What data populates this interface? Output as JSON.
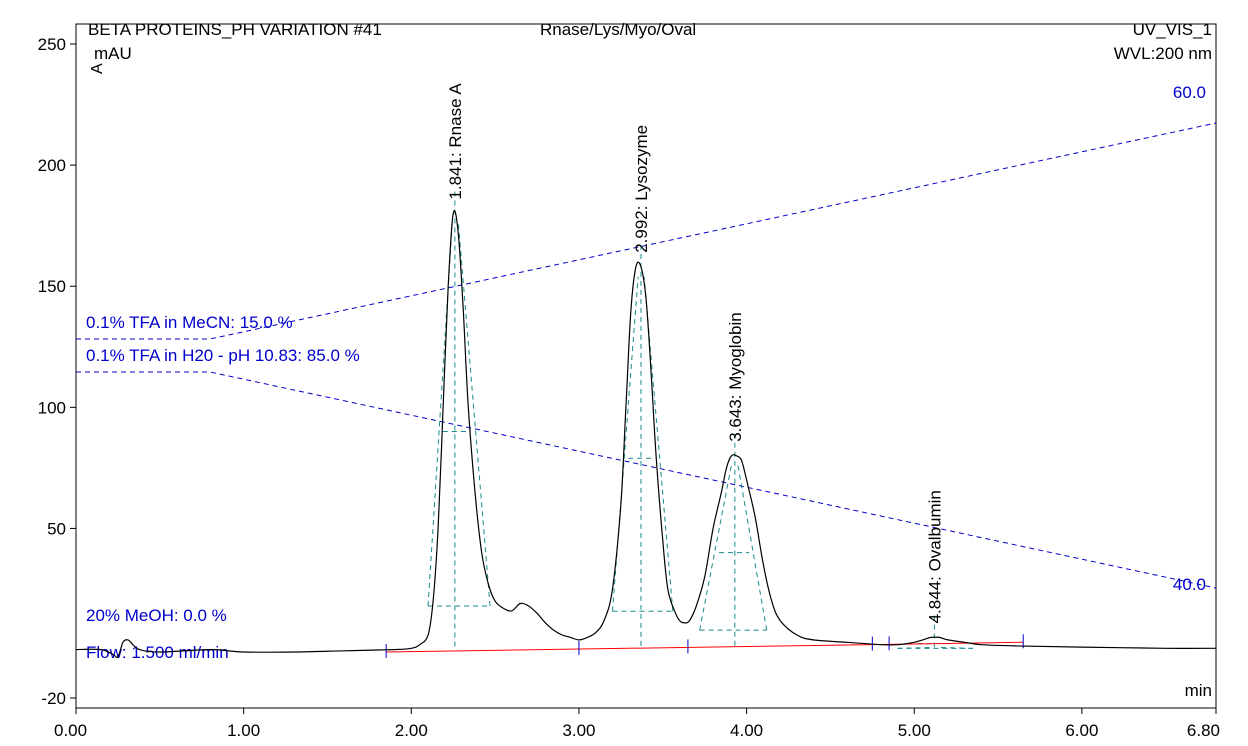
{
  "header": {
    "title": "BETA PROTEINS_PH VARIATION #41",
    "sample": "Rnase/Lys/Myo/Oval",
    "channel": "UV_VIS_1",
    "wavelength": "WVL:200 nm",
    "y_unit": "mAU",
    "x_unit": "min",
    "tray_marker": "A"
  },
  "gradient_labels": {
    "solvent_b": "0.1% TFA in MeCN: 15.0 %",
    "solvent_a": "0.1% TFA in H20 - pH 10.83: 85.0 %",
    "solvent_c": "20% MeOH: 0.0 %",
    "flow": "Flow: 1.500 ml/min",
    "top_value": "60.0",
    "bottom_value": "40.0"
  },
  "colors": {
    "signal": "#000000",
    "gradient": "#0000cc",
    "baseline": "#ff0000",
    "peak_markers": "#1a8c8c",
    "axis": "#000000"
  },
  "chart_data": {
    "type": "line",
    "title": "BETA PROTEINS_PH VARIATION #41",
    "xlabel": "min",
    "ylabel": "mAU",
    "xlim": [
      0.0,
      6.8
    ],
    "ylim": [
      -20,
      250
    ],
    "x_ticks": [
      "0.00",
      "1.00",
      "2.00",
      "3.00",
      "4.00",
      "5.00",
      "6.00",
      "6.80"
    ],
    "y_ticks": [
      "-20",
      "50",
      "100",
      "150",
      "200",
      "250"
    ],
    "grid": false,
    "series": [
      {
        "name": "UV_VIS_1",
        "x": [
          0.0,
          0.15,
          0.22,
          0.25,
          0.28,
          0.31,
          0.34,
          0.38,
          0.5,
          0.8,
          1.0,
          1.3,
          1.6,
          1.9,
          2.0,
          2.05,
          2.1,
          2.13,
          2.16,
          2.19,
          2.22,
          2.25,
          2.28,
          2.31,
          2.34,
          2.38,
          2.42,
          2.46,
          2.5,
          2.55,
          2.6,
          2.65,
          2.7,
          2.75,
          2.8,
          2.85,
          2.9,
          2.95,
          3.0,
          3.05,
          3.1,
          3.15,
          3.2,
          3.25,
          3.28,
          3.31,
          3.34,
          3.37,
          3.4,
          3.43,
          3.46,
          3.5,
          3.53,
          3.57,
          3.6,
          3.63,
          3.66,
          3.7,
          3.75,
          3.8,
          3.85,
          3.88,
          3.91,
          3.94,
          3.97,
          4.0,
          4.05,
          4.1,
          4.15,
          4.2,
          4.3,
          4.4,
          4.6,
          4.8,
          4.9,
          5.0,
          5.05,
          5.1,
          5.15,
          5.2,
          5.3,
          5.4,
          5.6,
          6.0,
          6.5,
          6.8
        ],
        "y": [
          0,
          0,
          -2,
          -3,
          3,
          4,
          2,
          0,
          -1,
          0,
          -1,
          -1,
          -0.5,
          0,
          0.5,
          2,
          6,
          20,
          50,
          100,
          150,
          180,
          172,
          140,
          100,
          65,
          40,
          27,
          20,
          17,
          16,
          19,
          18,
          15,
          11,
          8,
          6,
          5,
          4,
          5,
          7,
          12,
          25,
          60,
          100,
          140,
          158,
          158,
          145,
          115,
          80,
          45,
          25,
          16,
          12,
          11,
          12,
          18,
          30,
          50,
          65,
          75,
          80,
          80,
          78,
          70,
          55,
          35,
          20,
          12,
          6,
          4,
          3,
          2,
          2,
          3,
          4,
          5,
          5,
          4,
          3,
          2,
          1.5,
          1,
          0.5,
          0.5
        ]
      },
      {
        "name": "0.1% TFA in MeCN",
        "x": [
          0.0,
          0.8,
          6.8
        ],
        "y": [
          15.0,
          15.0,
          60.0
        ]
      },
      {
        "name": "0.1% TFA in H20 - pH 10.83",
        "x": [
          0.0,
          0.8,
          6.8
        ],
        "y": [
          85.0,
          85.0,
          40.0
        ]
      },
      {
        "name": "baseline",
        "x": [
          1.85,
          5.65
        ],
        "y": [
          -1,
          3
        ]
      }
    ],
    "peaks": [
      {
        "label": "1.841: Rnase A",
        "x": 2.26,
        "y": 180
      },
      {
        "label": "2.992: Lysozyme",
        "x": 3.37,
        "y": 158
      },
      {
        "label": "3.643: Myoglobin",
        "x": 3.93,
        "y": 80
      },
      {
        "label": "4.844: Ovalbumin",
        "x": 5.12,
        "y": 5
      }
    ]
  }
}
